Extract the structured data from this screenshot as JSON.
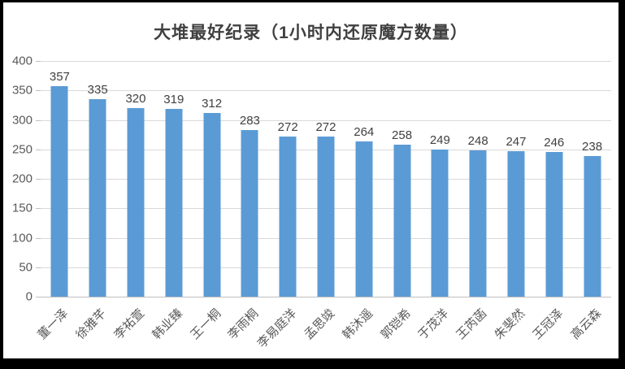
{
  "chart_data": {
    "type": "bar",
    "title": "大堆最好纪录（1小时内还原魔方数量）",
    "categories": [
      "董一泽",
      "徐雅芊",
      "李祐萱",
      "韩业臻",
      "王一桐",
      "李雨桐",
      "李易庭洋",
      "孟思竣",
      "韩沐遥",
      "郭铠希",
      "于茂洋",
      "王芮菡",
      "朱斐然",
      "王冠泽",
      "高云森"
    ],
    "values": [
      357,
      335,
      320,
      319,
      312,
      283,
      272,
      272,
      264,
      258,
      249,
      248,
      247,
      246,
      238
    ],
    "xlabel": "",
    "ylabel": "",
    "ylim": [
      0,
      400
    ],
    "yticks": [
      0,
      50,
      100,
      150,
      200,
      250,
      300,
      350,
      400
    ],
    "grid": true,
    "legend": false,
    "data_labels": true,
    "bar_color": "#5b9bd5",
    "gridline_color": "#d9d9d9",
    "axis_line_color": "#bfbfbf",
    "title_color": "#404040",
    "data_label_color": "#404040",
    "tick_label_color": "#595959",
    "frame_color": "#000000"
  }
}
